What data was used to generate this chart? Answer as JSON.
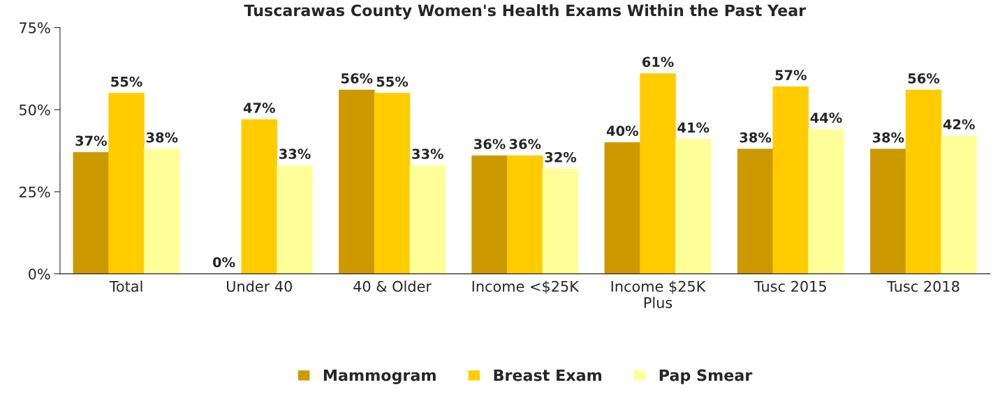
{
  "chart_data": {
    "type": "bar",
    "title": "Tuscarawas County Women's Health Exams Within the Past Year",
    "categories": [
      "Total",
      "Under 40",
      "40 & Older",
      "Income <$25K",
      "Income $25K\nPlus",
      "Tusc 2015",
      "Tusc 2018"
    ],
    "series": [
      {
        "name": "Mammogram",
        "color": "#cc9900",
        "values": [
          37,
          0,
          56,
          36,
          40,
          38,
          38
        ],
        "value_labels": [
          "37%",
          "0%",
          "56%",
          "36%",
          "40%",
          "38%",
          "38%"
        ]
      },
      {
        "name": "Breast Exam",
        "color": "#ffcc00",
        "values": [
          55,
          47,
          55,
          36,
          61,
          57,
          56
        ],
        "value_labels": [
          "55%",
          "47%",
          "55%",
          "36%",
          "61%",
          "57%",
          "56%"
        ]
      },
      {
        "name": "Pap Smear",
        "color": "#ffff99",
        "values": [
          38,
          33,
          33,
          32,
          41,
          44,
          42
        ],
        "value_labels": [
          "38%",
          "33%",
          "33%",
          "32%",
          "41%",
          "44%",
          "42%"
        ]
      }
    ],
    "ylim": [
      0,
      75
    ],
    "yticks": [
      {
        "value": 0,
        "label": "0%"
      },
      {
        "value": 25,
        "label": "25%"
      },
      {
        "value": 50,
        "label": "50%"
      },
      {
        "value": 75,
        "label": "75%"
      }
    ],
    "grid": false,
    "legend": "bottom"
  }
}
